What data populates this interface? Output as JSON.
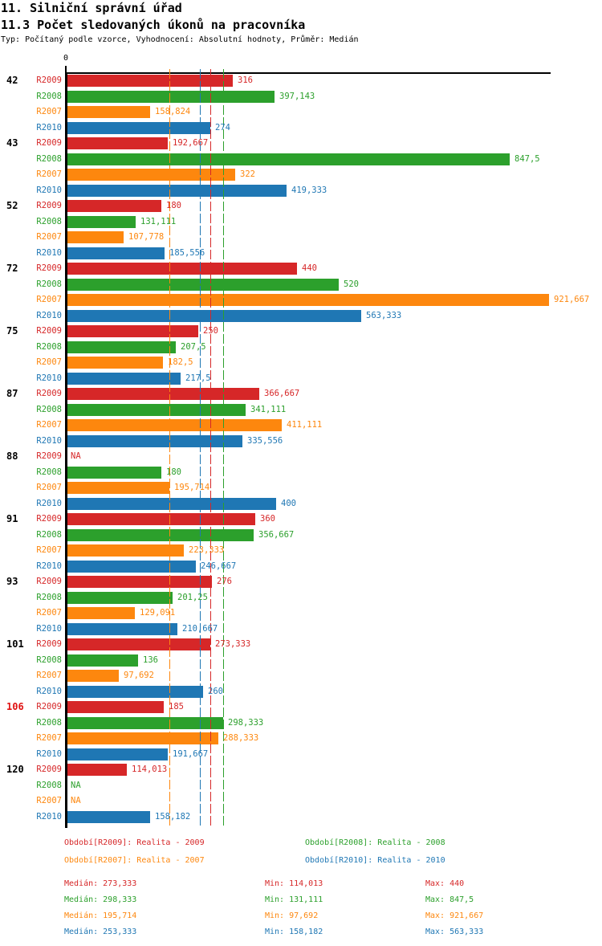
{
  "header": {
    "title_line1": "11. Silniční správní úřad",
    "title_line2": "11.3 Počet sledovaných úkonů na pracovníka",
    "subtitle": "Typ: Počítaný podle vzorce, Vyhodnocení: Absolutní hodnoty, Průměr: Medián"
  },
  "colors": {
    "R2009": "#d62728",
    "R2008": "#2ca02c",
    "R2007": "#fd870e",
    "R2010": "#1f77b4",
    "axis": "#000000",
    "group_label": "#000000",
    "highlight_group_label": "#e01212"
  },
  "chart_data": {
    "type": "bar",
    "orientation": "horizontal",
    "origin_label": "0",
    "xlim": [
      0,
      930
    ],
    "grid": false,
    "series_order": [
      "R2009",
      "R2008",
      "R2007",
      "R2010"
    ],
    "medians": {
      "R2009": 273.333,
      "R2008": 298.333,
      "R2007": 195.714,
      "R2010": 253.333
    },
    "groups": [
      {
        "label": "42",
        "highlight": false,
        "bars": [
          {
            "series": "R2009",
            "value": 316,
            "display": "316"
          },
          {
            "series": "R2008",
            "value": 397.143,
            "display": "397,143"
          },
          {
            "series": "R2007",
            "value": 158.824,
            "display": "158,824"
          },
          {
            "series": "R2010",
            "value": 274,
            "display": "274"
          }
        ]
      },
      {
        "label": "43",
        "highlight": false,
        "bars": [
          {
            "series": "R2009",
            "value": 192.667,
            "display": "192,667"
          },
          {
            "series": "R2008",
            "value": 847.5,
            "display": "847,5"
          },
          {
            "series": "R2007",
            "value": 322,
            "display": "322"
          },
          {
            "series": "R2010",
            "value": 419.333,
            "display": "419,333"
          }
        ]
      },
      {
        "label": "52",
        "highlight": false,
        "bars": [
          {
            "series": "R2009",
            "value": 180,
            "display": "180"
          },
          {
            "series": "R2008",
            "value": 131.111,
            "display": "131,111"
          },
          {
            "series": "R2007",
            "value": 107.778,
            "display": "107,778"
          },
          {
            "series": "R2010",
            "value": 185.556,
            "display": "185,556"
          }
        ]
      },
      {
        "label": "72",
        "highlight": false,
        "bars": [
          {
            "series": "R2009",
            "value": 440,
            "display": "440"
          },
          {
            "series": "R2008",
            "value": 520,
            "display": "520"
          },
          {
            "series": "R2007",
            "value": 921.667,
            "display": "921,667"
          },
          {
            "series": "R2010",
            "value": 563.333,
            "display": "563,333"
          }
        ]
      },
      {
        "label": "75",
        "highlight": false,
        "bars": [
          {
            "series": "R2009",
            "value": 250,
            "display": "250"
          },
          {
            "series": "R2008",
            "value": 207.5,
            "display": "207,5"
          },
          {
            "series": "R2007",
            "value": 182.5,
            "display": "182,5"
          },
          {
            "series": "R2010",
            "value": 217.5,
            "display": "217,5"
          }
        ]
      },
      {
        "label": "87",
        "highlight": false,
        "bars": [
          {
            "series": "R2009",
            "value": 366.667,
            "display": "366,667"
          },
          {
            "series": "R2008",
            "value": 341.111,
            "display": "341,111"
          },
          {
            "series": "R2007",
            "value": 411.111,
            "display": "411,111"
          },
          {
            "series": "R2010",
            "value": 335.556,
            "display": "335,556"
          }
        ]
      },
      {
        "label": "88",
        "highlight": false,
        "bars": [
          {
            "series": "R2009",
            "value": null,
            "display": "NA"
          },
          {
            "series": "R2008",
            "value": 180,
            "display": "180"
          },
          {
            "series": "R2007",
            "value": 195.714,
            "display": "195,714"
          },
          {
            "series": "R2010",
            "value": 400,
            "display": "400"
          }
        ]
      },
      {
        "label": "91",
        "highlight": false,
        "bars": [
          {
            "series": "R2009",
            "value": 360,
            "display": "360"
          },
          {
            "series": "R2008",
            "value": 356.667,
            "display": "356,667"
          },
          {
            "series": "R2007",
            "value": 223.333,
            "display": "223,333"
          },
          {
            "series": "R2010",
            "value": 246.667,
            "display": "246,667"
          }
        ]
      },
      {
        "label": "93",
        "highlight": false,
        "bars": [
          {
            "series": "R2009",
            "value": 276,
            "display": "276"
          },
          {
            "series": "R2008",
            "value": 201.25,
            "display": "201,25"
          },
          {
            "series": "R2007",
            "value": 129.091,
            "display": "129,091"
          },
          {
            "series": "R2010",
            "value": 210.667,
            "display": "210,667"
          }
        ]
      },
      {
        "label": "101",
        "highlight": false,
        "bars": [
          {
            "series": "R2009",
            "value": 273.333,
            "display": "273,333"
          },
          {
            "series": "R2008",
            "value": 136,
            "display": "136"
          },
          {
            "series": "R2007",
            "value": 97.692,
            "display": "97,692"
          },
          {
            "series": "R2010",
            "value": 260,
            "display": "260"
          }
        ]
      },
      {
        "label": "106",
        "highlight": true,
        "bars": [
          {
            "series": "R2009",
            "value": 185,
            "display": "185"
          },
          {
            "series": "R2008",
            "value": 298.333,
            "display": "298,333"
          },
          {
            "series": "R2007",
            "value": 288.333,
            "display": "288,333"
          },
          {
            "series": "R2010",
            "value": 191.667,
            "display": "191,667"
          }
        ]
      },
      {
        "label": "120",
        "highlight": false,
        "bars": [
          {
            "series": "R2009",
            "value": 114.013,
            "display": "114,013"
          },
          {
            "series": "R2008",
            "value": null,
            "display": "NA"
          },
          {
            "series": "R2007",
            "value": null,
            "display": "NA"
          },
          {
            "series": "R2010",
            "value": 158.182,
            "display": "158,182"
          }
        ]
      }
    ]
  },
  "legend": {
    "items": [
      {
        "series": "R2009",
        "text": "Období[R2009]: Realita - 2009"
      },
      {
        "series": "R2008",
        "text": "Období[R2008]: Realita - 2008"
      },
      {
        "series": "R2007",
        "text": "Období[R2007]: Realita - 2007"
      },
      {
        "series": "R2010",
        "text": "Období[R2010]: Realita - 2010"
      }
    ]
  },
  "stats": {
    "rows": [
      {
        "series": "R2009",
        "median": "Medián: 273,333",
        "min": "Min: 114,013",
        "max": "Max: 440"
      },
      {
        "series": "R2008",
        "median": "Medián: 298,333",
        "min": "Min: 131,111",
        "max": "Max: 847,5"
      },
      {
        "series": "R2007",
        "median": "Medián: 195,714",
        "min": "Min: 97,692",
        "max": "Max: 921,667"
      },
      {
        "series": "R2010",
        "median": "Medián: 253,333",
        "min": "Min: 158,182",
        "max": "Max: 563,333"
      }
    ]
  }
}
